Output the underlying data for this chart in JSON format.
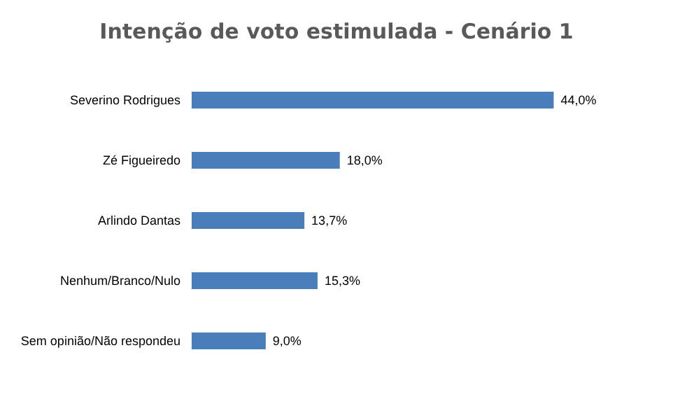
{
  "chart_data": {
    "type": "bar",
    "orientation": "horizontal",
    "title": "Intenção de voto estimulada - Cenário 1",
    "categories": [
      "Severino Rodrigues",
      "Zé Figueiredo",
      "Arlindo Dantas",
      "Nenhum/Branco/Nulo",
      "Sem opinião/Não respondeu"
    ],
    "values": [
      44.0,
      18.0,
      13.7,
      15.3,
      9.0
    ],
    "value_labels": [
      "44,0%",
      "18,0%",
      "13,7%",
      "15,3%",
      "9,0%"
    ],
    "color": "#4a7ebb",
    "tick_labels": "y"
  }
}
